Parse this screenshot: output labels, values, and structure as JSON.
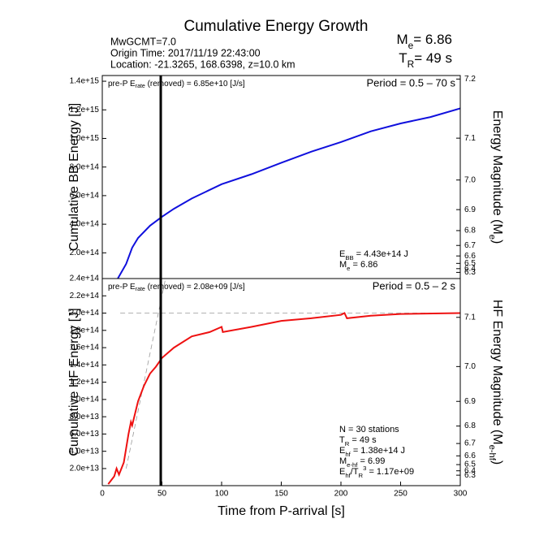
{
  "header": {
    "title": "Cumulative Energy Growth",
    "info": [
      "MwGCMT=7.0",
      "Origin Time: 2017/11/19 22:43:00",
      "Location: -21.3265, 168.6398, z=10.0 km"
    ],
    "magnitude": [
      {
        "text": "M"
      },
      {
        "sub": "e"
      },
      {
        "text": "= 6.86"
      }
    ],
    "duration": [
      {
        "text": "T"
      },
      {
        "sub": "R"
      },
      {
        "text": "= 49 s"
      }
    ]
  },
  "chart_data": [
    {
      "type": "line",
      "ylabel": "Cumulative BB Energy [J]",
      "y2label": [
        {
          "text": "Energy Magnitude (M"
        },
        {
          "sub": "e"
        },
        {
          "text": ")"
        }
      ],
      "x": [
        13,
        20,
        25,
        30,
        40,
        50,
        60,
        75,
        100,
        125,
        150,
        175,
        200,
        225,
        250,
        275,
        300
      ],
      "series": [
        {
          "color": "#1010dd",
          "values": [
            20000000000000.0,
            122000000000000.0,
            236000000000000.0,
            304000000000000.0,
            390000000000000.0,
            452000000000000.0,
            508000000000000.0,
            580000000000000.0,
            680000000000000.0,
            750000000000000.0,
            830000000000000.0,
            907000000000000.0,
            975000000000000.0,
            1050000000000000.0,
            1105000000000000.0,
            1150000000000000.0,
            1210000000000000.0
          ]
        }
      ],
      "xlim": [
        0,
        300
      ],
      "ylim": [
        20000000000000.0,
        1440000000000000.0
      ],
      "yticks": [
        {
          "value": 200000000000000.0,
          "label": "2.0e+14"
        },
        {
          "value": 400000000000000.0,
          "label": "4.0e+14"
        },
        {
          "value": 600000000000000.0,
          "label": "6.0e+14"
        },
        {
          "value": 800000000000000.0,
          "label": "8.0e+14"
        },
        {
          "value": 1000000000000000.0,
          "label": "1.0e+15"
        },
        {
          "value": 1200000000000000.0,
          "label": "1.2e+15"
        },
        {
          "value": 1400000000000000.0,
          "label": "1.4e+15"
        }
      ],
      "y2lim": [
        5.967,
        7.205
      ],
      "y2ticks": [
        7.2,
        7.1,
        {
          "value": 7,
          "label": "7.0"
        },
        6.9,
        6.8,
        6.7,
        6.6,
        6.5,
        6.4,
        6.3
      ],
      "vline": 49,
      "note_left": [
        {
          "text": "pre-P E"
        },
        {
          "sub": "rate"
        },
        {
          "text": " (removed) = 6.85e+10 [J/s]"
        }
      ],
      "note_right": "Period = 0.5 – 70 s",
      "stats": [
        [
          {
            "text": "E"
          },
          {
            "sub": "BB"
          },
          {
            "text": " = 4.43e+14 J"
          }
        ],
        [
          {
            "text": "M"
          },
          {
            "sub": "e"
          },
          {
            "text": " = 6.86"
          }
        ]
      ]
    },
    {
      "type": "line",
      "ylabel": "Cumulative HF Energy [J]",
      "y2label": [
        {
          "text": "HF Energy Magnitude (M"
        },
        {
          "sub": "e-hf"
        },
        {
          "text": ")"
        }
      ],
      "xlabel": "Time from P-arrival [s]",
      "x": [
        5,
        10,
        12,
        14,
        18,
        22,
        24,
        25,
        30,
        35,
        40,
        45,
        50,
        60,
        75,
        90,
        100,
        101,
        125,
        150,
        175,
        200,
        203,
        205,
        225,
        250,
        300
      ],
      "series": [
        {
          "color": "#ee1111",
          "values": [
            2000000000000.0,
            11000000000000.0,
            20000000000000.0,
            13000000000000.0,
            27000000000000.0,
            60000000000000.0,
            74000000000000.0,
            70000000000000.0,
            98000000000000.0,
            116000000000000.0,
            130000000000000.0,
            138000000000000.0,
            148000000000000.0,
            160000000000000.0,
            173000000000000.0,
            178000000000000.0,
            184000000000000.0,
            178000000000000.0,
            184000000000000.0,
            191000000000000.0,
            194000000000000.0,
            198000000000000.0,
            200000000000000.0,
            194000000000000.0,
            197000000000000.0,
            199000000000000.0,
            200000000000000.0
          ]
        }
      ],
      "dashed": [
        {
          "x": [
            15,
            300
          ],
          "values": [
            200000000000000.0,
            200000000000000.0
          ]
        },
        {
          "x": [
            20,
            53
          ],
          "values": [
            20000000000000.0,
            240000000000000.0
          ]
        }
      ],
      "xlim": [
        0,
        300
      ],
      "ylim": [
        200000000000.0,
        240000000000000.0
      ],
      "xticks": [
        0,
        50,
        100,
        150,
        200,
        250,
        300
      ],
      "yticks": [
        {
          "value": 20000000000000.0,
          "label": "2.0e+13"
        },
        {
          "value": 40000000000000.0,
          "label": "4.0e+13"
        },
        {
          "value": 60000000000000.0,
          "label": "6.0e+13"
        },
        {
          "value": 80000000000000.0,
          "label": "8.0e+13"
        },
        {
          "value": 100000000000000.0,
          "label": "1.0e+14"
        },
        {
          "value": 120000000000000.0,
          "label": "1.2e+14"
        },
        {
          "value": 140000000000000.0,
          "label": "1.4e+14"
        },
        {
          "value": 160000000000000.0,
          "label": "1.6e+14"
        },
        {
          "value": 180000000000000.0,
          "label": "1.8e+14"
        },
        {
          "value": 200000000000000.0,
          "label": "2.0e+14"
        },
        {
          "value": 220000000000000.0,
          "label": "2.2e+14"
        },
        {
          "value": 240000000000000.0,
          "label": "2.4e+14"
        }
      ],
      "y2lim": [
        5.107,
        7.16
      ],
      "y2ticks": [
        7.1,
        {
          "value": 7,
          "label": "7.0"
        },
        6.9,
        6.8,
        6.7,
        6.6,
        6.5,
        6.4,
        6.3
      ],
      "vline": 49,
      "note_left": [
        {
          "text": "pre-P E"
        },
        {
          "sub": "rate"
        },
        {
          "text": " (removed) = 2.08e+09 [J/s]"
        }
      ],
      "note_right": "Period = 0.5 – 2 s",
      "stats": [
        [
          {
            "text": "N = 30 stations"
          }
        ],
        [
          {
            "text": "T"
          },
          {
            "sub": "R"
          },
          {
            "text": " = 49  s"
          }
        ],
        [
          {
            "text": "E"
          },
          {
            "sub": "hf"
          },
          {
            "text": " = 1.38e+14 J"
          }
        ],
        [
          {
            "text": "M"
          },
          {
            "sub": "e-hf"
          },
          {
            "text": " = 6.99"
          }
        ],
        [
          {
            "text": "E"
          },
          {
            "sub": "hf"
          },
          {
            "text": "/T"
          },
          {
            "sub": "R"
          },
          {
            "sup": "3"
          },
          {
            "text": " =  1.17e+09"
          }
        ]
      ]
    }
  ]
}
